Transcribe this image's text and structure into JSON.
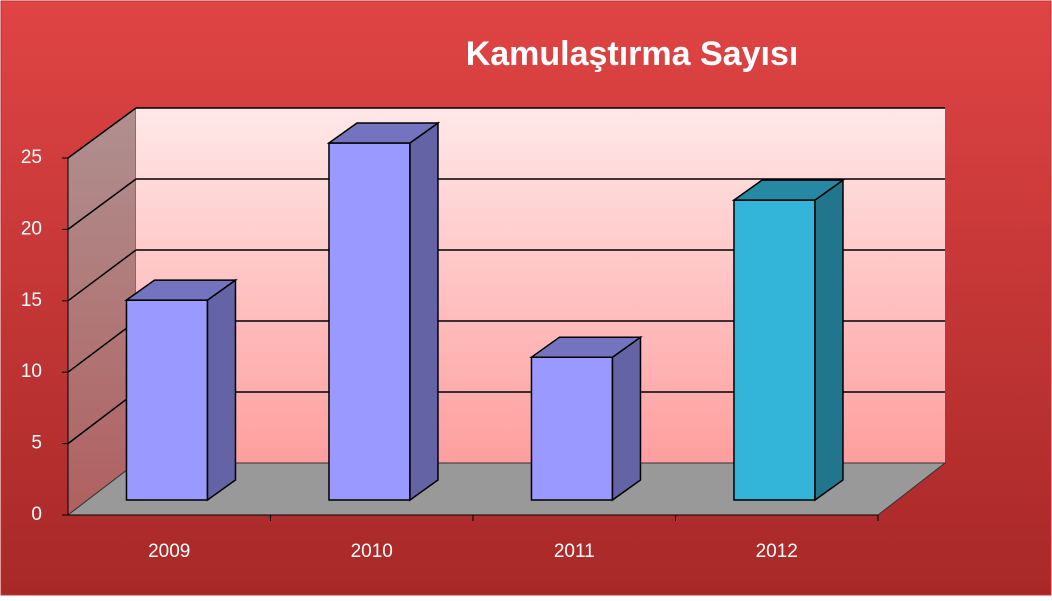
{
  "chart_data": {
    "type": "bar3d",
    "title": "Kamulaştırma Sayısı",
    "categories": [
      "2009",
      "2010",
      "2011",
      "2012"
    ],
    "values": [
      14,
      25,
      10,
      21
    ],
    "colors": [
      "#9999ff",
      "#9999ff",
      "#9999ff",
      "#33b5d9"
    ],
    "ylim": [
      0,
      25
    ],
    "yticks": [
      0,
      5,
      10,
      15,
      20,
      25
    ],
    "grid": true
  }
}
